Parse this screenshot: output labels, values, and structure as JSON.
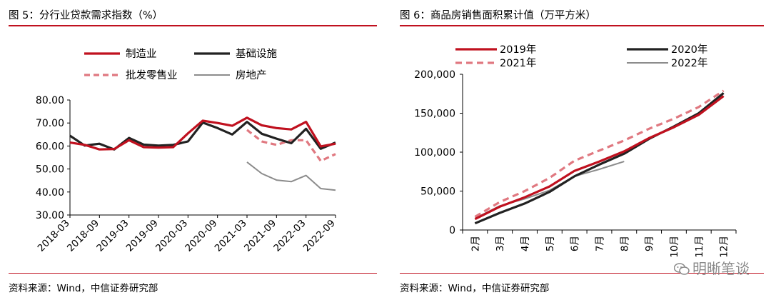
{
  "chart_data": [
    {
      "type": "line",
      "title": "图 5：分行业贷款需求指数（%）",
      "source": "资料来源：Wind，中信证券研究部",
      "x": [
        "2018-03",
        "2018-06",
        "2018-09",
        "2018-12",
        "2019-03",
        "2019-06",
        "2019-09",
        "2019-12",
        "2020-03",
        "2020-06",
        "2020-09",
        "2020-12",
        "2021-03",
        "2021-06",
        "2021-09",
        "2021-12",
        "2022-03",
        "2022-06",
        "2022-09"
      ],
      "x_tick_labels": [
        "2018-03",
        "2018-09",
        "2019-03",
        "2019-09",
        "2020-03",
        "2020-09",
        "2021-03",
        "2021-09",
        "2022-03",
        "2022-09"
      ],
      "ylim": [
        30,
        80
      ],
      "y_ticks": [
        "30.00",
        "40.00",
        "50.00",
        "60.00",
        "70.00",
        "80.00"
      ],
      "legend_position": "top",
      "grid": false,
      "series": [
        {
          "name": "制造业",
          "color": "#c0111f",
          "style": "solid",
          "values": [
            61.5,
            60.5,
            58.5,
            58.7,
            62.5,
            59.5,
            59.3,
            59.5,
            65.5,
            71.0,
            70.0,
            68.8,
            72.3,
            69.0,
            67.8,
            67.2,
            70.5,
            59.8,
            61.0
          ]
        },
        {
          "name": "基础设施",
          "color": "#222222",
          "style": "solid",
          "values": [
            64.5,
            60.2,
            61.0,
            58.5,
            63.5,
            60.6,
            60.2,
            60.5,
            62.0,
            70.2,
            67.8,
            65.0,
            70.5,
            65.3,
            63.2,
            61.2,
            67.5,
            58.8,
            61.5
          ]
        },
        {
          "name": "批发零售业",
          "color": "#e07880",
          "style": "dashed",
          "values": [
            null,
            null,
            null,
            null,
            null,
            null,
            null,
            null,
            null,
            null,
            null,
            null,
            67.0,
            62.0,
            60.5,
            62.5,
            62.5,
            53.5,
            56.5
          ]
        },
        {
          "name": "房地产",
          "color": "#8c8c8c",
          "style": "solid",
          "values": [
            null,
            null,
            null,
            null,
            null,
            null,
            null,
            null,
            null,
            null,
            null,
            null,
            53.0,
            48.0,
            45.2,
            44.5,
            47.2,
            41.5,
            40.8
          ]
        }
      ]
    },
    {
      "type": "line",
      "title": "图 6：商品房销售面积累计值（万平方米）",
      "source": "资料来源：Wind，中信证券研究部",
      "categories": [
        "2月",
        "3月",
        "4月",
        "5月",
        "6月",
        "7月",
        "8月",
        "9月",
        "10月",
        "11月",
        "12月"
      ],
      "ylim": [
        0,
        200000
      ],
      "y_ticks": [
        "0",
        "50,000",
        "100,000",
        "150,000",
        "200,000"
      ],
      "legend_position": "top",
      "grid": false,
      "series": [
        {
          "name": "2019年",
          "color": "#c0111f",
          "style": "solid",
          "values": [
            14000,
            30000,
            42000,
            56000,
            76000,
            88000,
            101000,
            118000,
            132000,
            148000,
            172000
          ]
        },
        {
          "name": "2020年",
          "color": "#222222",
          "style": "solid",
          "values": [
            8500,
            22000,
            34000,
            49000,
            69000,
            84000,
            98000,
            117000,
            133000,
            150000,
            176000
          ]
        },
        {
          "name": "2021年",
          "color": "#e07880",
          "style": "dashed",
          "values": [
            17000,
            36000,
            50000,
            67000,
            89000,
            102000,
            115000,
            130000,
            143000,
            158000,
            179000
          ]
        },
        {
          "name": "2022年",
          "color": "#8c8c8c",
          "style": "solid",
          "values": [
            15000,
            31000,
            40000,
            51000,
            69000,
            78000,
            88000,
            null,
            null,
            null,
            null
          ]
        }
      ]
    }
  ],
  "watermark": "明晰笔谈"
}
